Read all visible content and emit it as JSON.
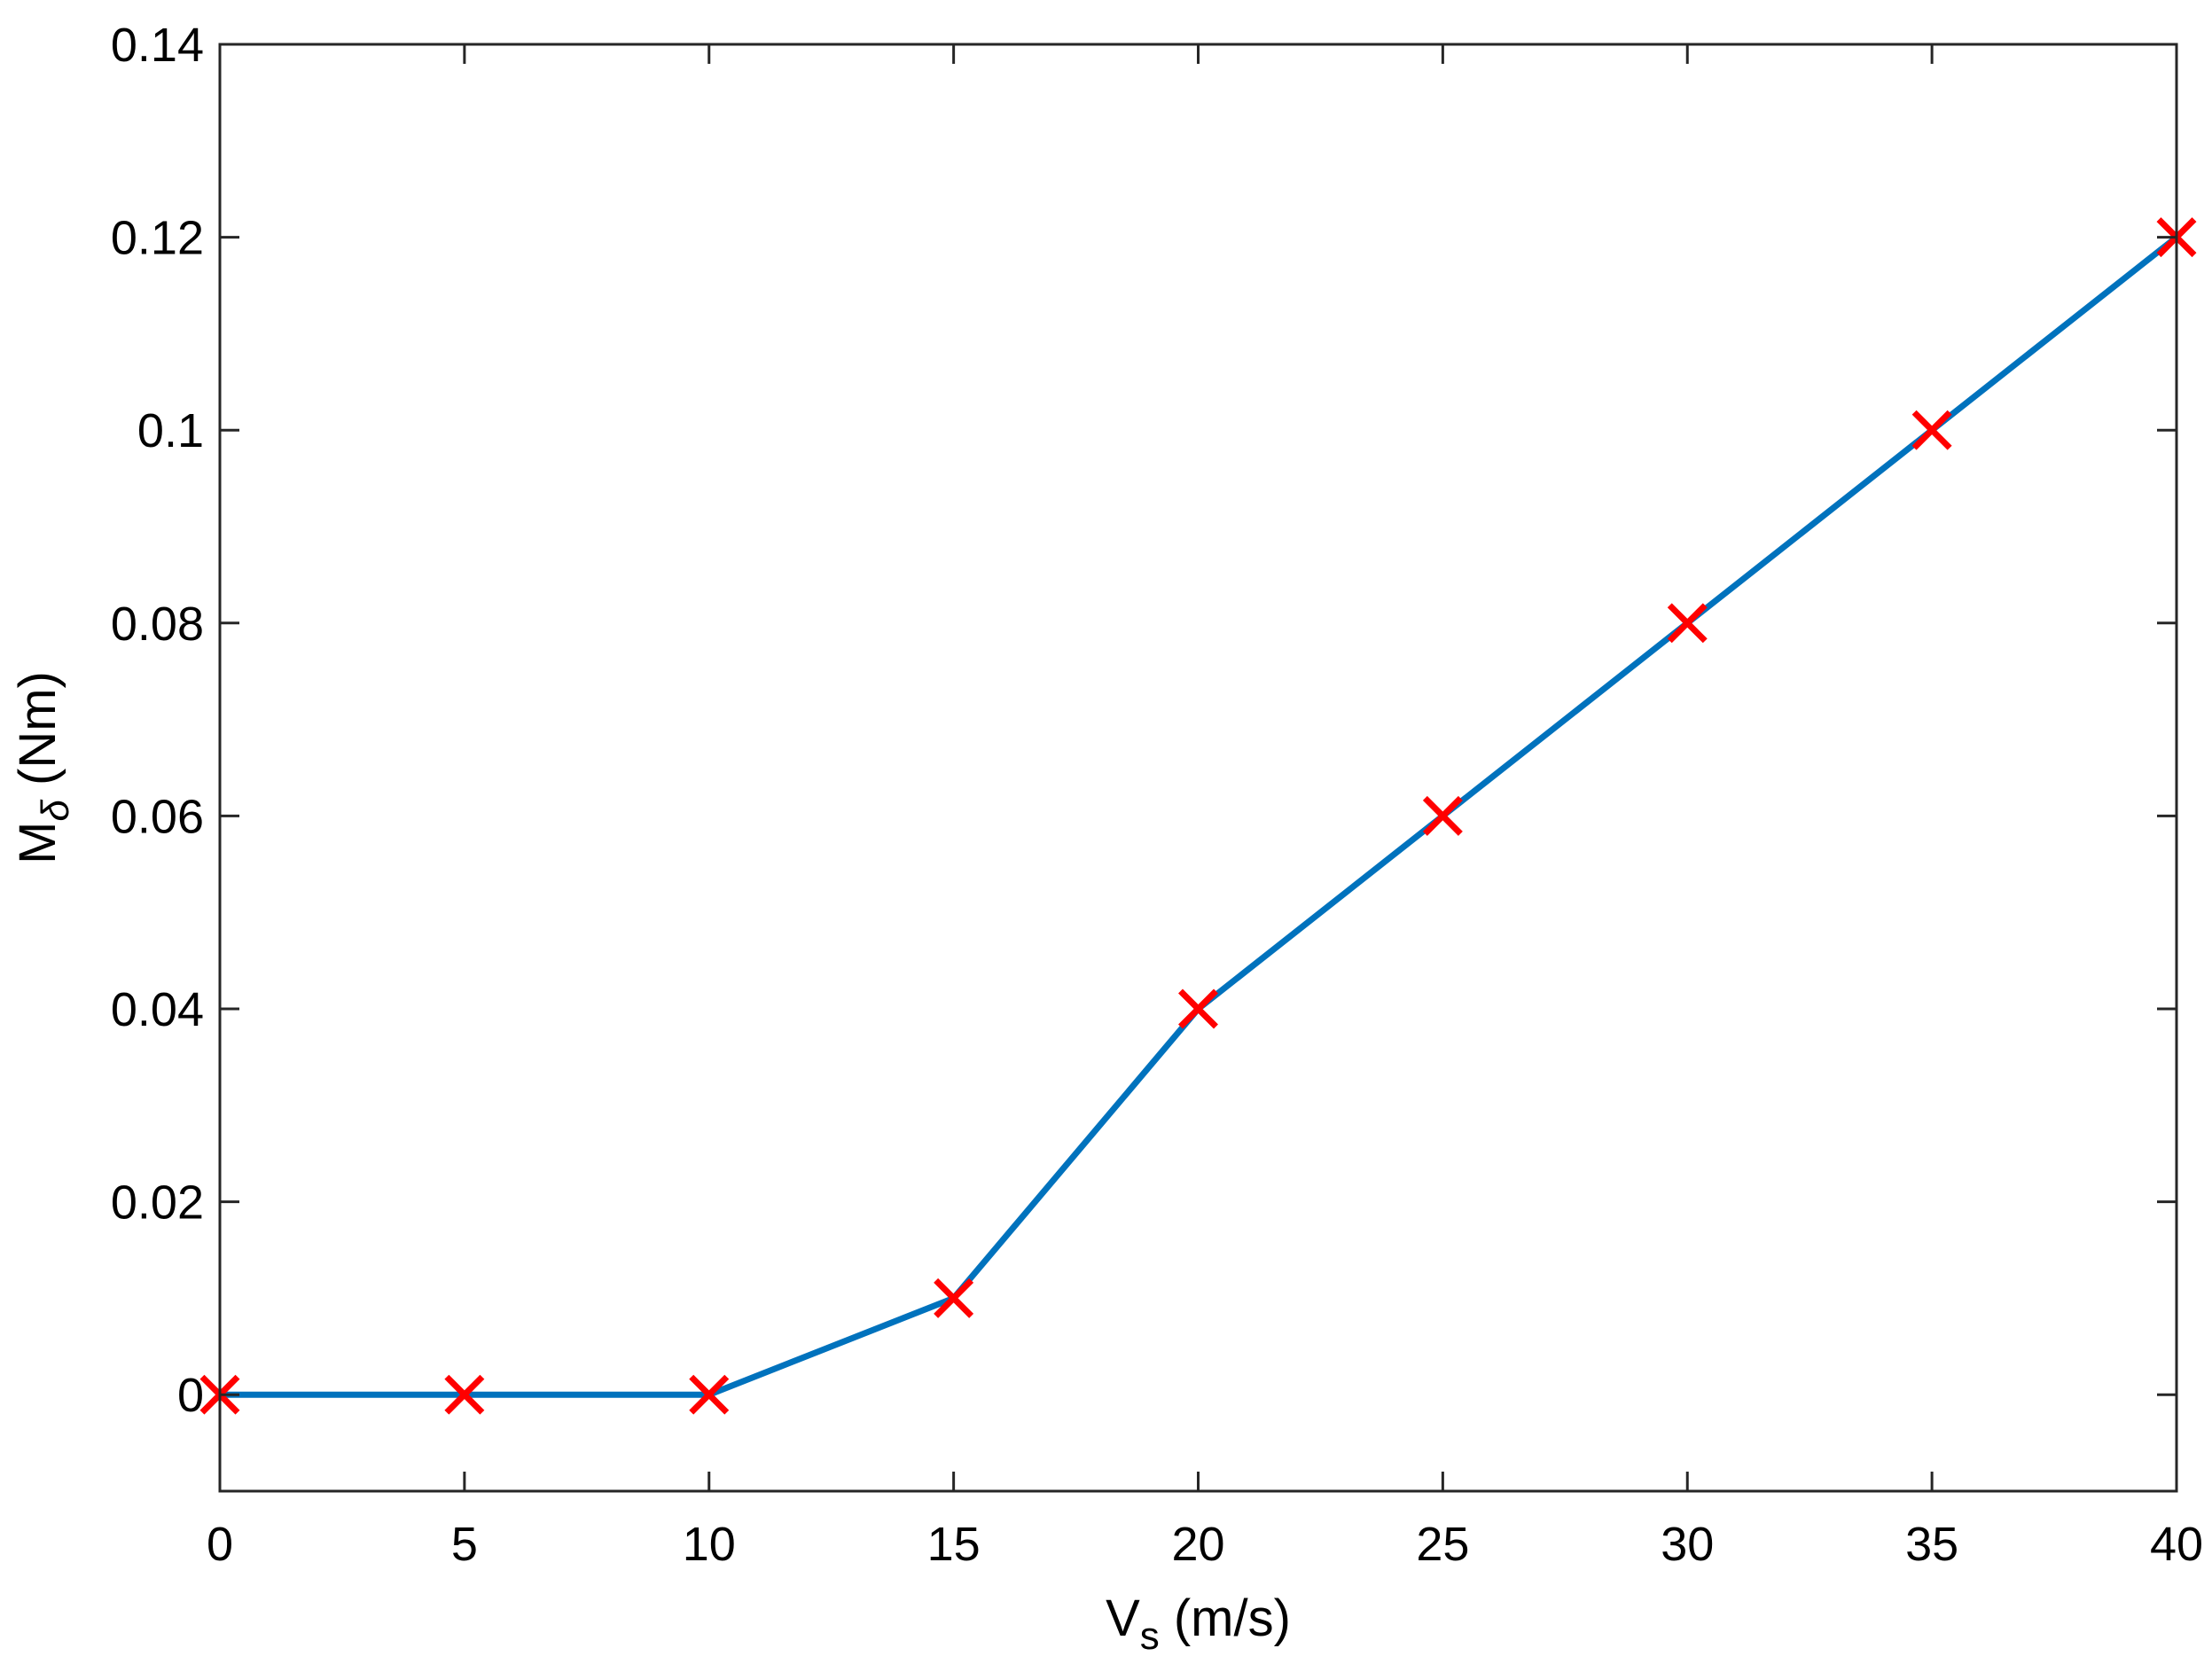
{
  "chart_data": {
    "type": "line",
    "xlabel": {
      "main": "V",
      "sub": "s",
      "unit": " (m/s)"
    },
    "ylabel": {
      "main": "M",
      "sub": "δ",
      "unit": " (Nm)"
    },
    "xlim": [
      0,
      40
    ],
    "ylim": [
      -0.01,
      0.14
    ],
    "xticks": [
      0,
      5,
      10,
      15,
      20,
      25,
      30,
      35,
      40
    ],
    "xtick_labels": [
      "0",
      "5",
      "10",
      "15",
      "20",
      "25",
      "30",
      "35",
      "40"
    ],
    "yticks": [
      0,
      0.02,
      0.04,
      0.06,
      0.08,
      0.1,
      0.12,
      0.14
    ],
    "ytick_labels": [
      "0",
      "0.02",
      "0.04",
      "0.06",
      "0.08",
      "0.1",
      "0.12",
      "0.14"
    ],
    "grid": false,
    "legend": "none",
    "series": [
      {
        "line_color": "#0072BD",
        "marker": "x",
        "marker_color": "#FF0000",
        "x": [
          0,
          5,
          10,
          15,
          20,
          25,
          30,
          35,
          40
        ],
        "y": [
          0,
          0,
          0,
          0.01,
          0.04,
          0.06,
          0.08,
          0.1,
          0.12
        ]
      }
    ]
  }
}
